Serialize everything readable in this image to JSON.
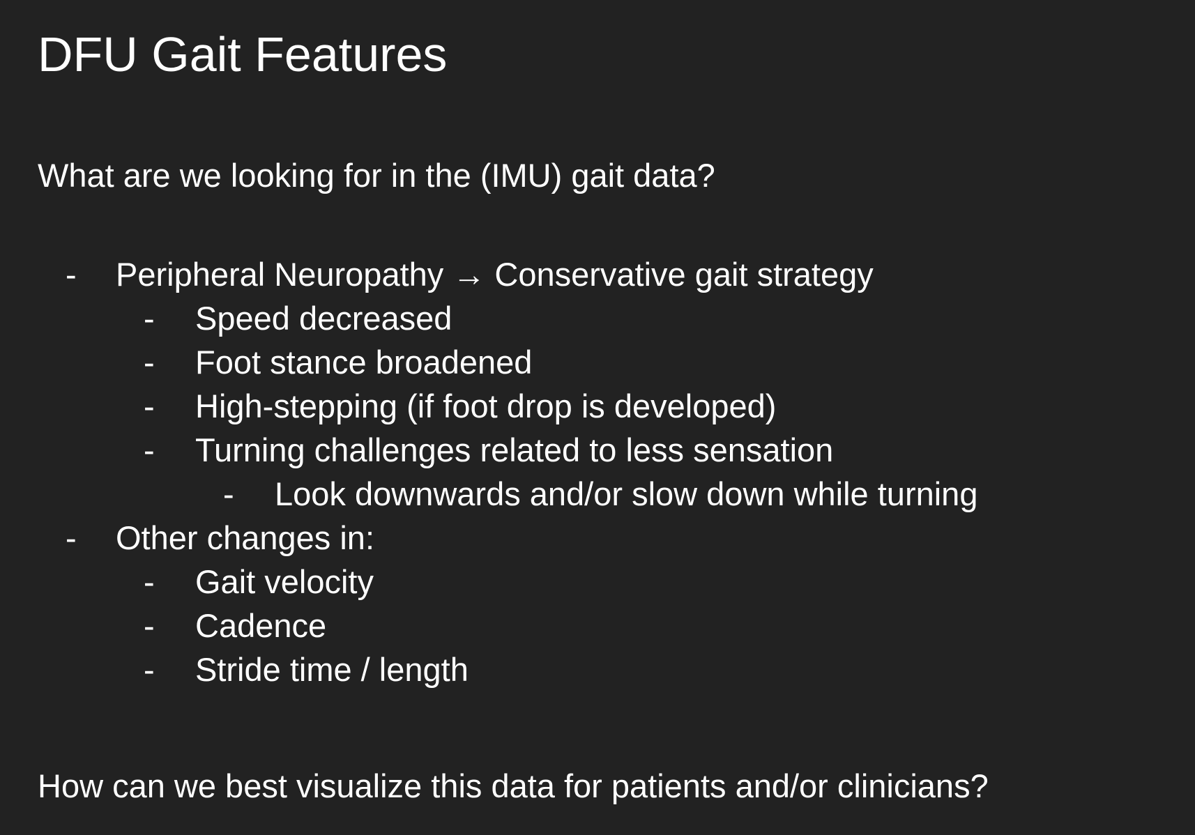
{
  "slide": {
    "title": "DFU Gait Features",
    "question_top": "What are we looking for in the (IMU) gait data?",
    "bullet_marker": "-",
    "bullets": [
      {
        "level": 1,
        "text": "Peripheral Neuropathy → Conservative gait strategy"
      },
      {
        "level": 2,
        "text": "Speed decreased"
      },
      {
        "level": 2,
        "text": "Foot stance broadened"
      },
      {
        "level": 2,
        "text": "High-stepping (if foot drop is developed)"
      },
      {
        "level": 2,
        "text": "Turning challenges related to less sensation"
      },
      {
        "level": 3,
        "text": "Look downwards and/or slow down while turning"
      },
      {
        "level": 1,
        "text": "Other changes in:"
      },
      {
        "level": 2,
        "text": "Gait velocity"
      },
      {
        "level": 2,
        "text": "Cadence"
      },
      {
        "level": 2,
        "text": "Stride time / length"
      }
    ],
    "question_bottom": "How can we best visualize this data for patients and/or clinicians?"
  },
  "colors": {
    "background": "#222222",
    "text": "#ffffff"
  }
}
